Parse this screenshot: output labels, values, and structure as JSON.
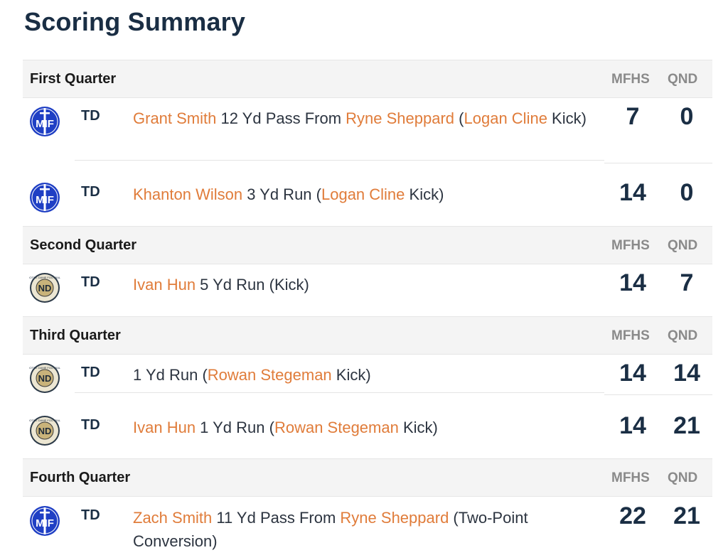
{
  "page": {
    "title": "Scoring Summary"
  },
  "columns": {
    "team1": "MFHS",
    "team2": "QND"
  },
  "quarters": [
    {
      "name": "First Quarter",
      "plays": [
        {
          "team": "mfhs",
          "type": "TD",
          "desc": [
            {
              "t": "Grant Smith",
              "hl": true
            },
            {
              "t": " 12 Yd Pass From ",
              "hl": false
            },
            {
              "t": "Ryne Sheppard",
              "hl": true
            },
            {
              "t": " (",
              "hl": false
            },
            {
              "t": "Logan Cline",
              "hl": true
            },
            {
              "t": " Kick)",
              "hl": false
            }
          ],
          "score1": "7",
          "score2": "0"
        },
        {
          "team": "mfhs",
          "type": "TD",
          "desc": [
            {
              "t": "Khanton Wilson",
              "hl": true
            },
            {
              "t": " 3 Yd Run (",
              "hl": false
            },
            {
              "t": "Logan Cline",
              "hl": true
            },
            {
              "t": " Kick)",
              "hl": false
            }
          ],
          "score1": "14",
          "score2": "0"
        }
      ]
    },
    {
      "name": "Second Quarter",
      "plays": [
        {
          "team": "qnd",
          "type": "TD",
          "desc": [
            {
              "t": "Ivan Hun",
              "hl": true
            },
            {
              "t": " 5 Yd Run (Kick)",
              "hl": false
            }
          ],
          "score1": "14",
          "score2": "7"
        }
      ]
    },
    {
      "name": "Third Quarter",
      "plays": [
        {
          "team": "qnd",
          "type": "TD",
          "desc": [
            {
              "t": "1 Yd Run (",
              "hl": false
            },
            {
              "t": "Rowan Stegeman",
              "hl": true
            },
            {
              "t": " Kick)",
              "hl": false
            }
          ],
          "score1": "14",
          "score2": "14"
        },
        {
          "team": "qnd",
          "type": "TD",
          "desc": [
            {
              "t": "Ivan Hun",
              "hl": true
            },
            {
              "t": " 1 Yd Run (",
              "hl": false
            },
            {
              "t": "Rowan Stegeman",
              "hl": true
            },
            {
              "t": " Kick)",
              "hl": false
            }
          ],
          "score1": "14",
          "score2": "21"
        }
      ]
    },
    {
      "name": "Fourth Quarter",
      "plays": [
        {
          "team": "mfhs",
          "type": "TD",
          "desc": [
            {
              "t": "Zach Smith",
              "hl": true
            },
            {
              "t": " 11 Yd Pass From ",
              "hl": false
            },
            {
              "t": "Ryne Sheppard",
              "hl": true
            },
            {
              "t": " (Two-Point Conversion)",
              "hl": false
            }
          ],
          "score1": "22",
          "score2": "21"
        }
      ]
    }
  ],
  "logos": {
    "mfhs": {
      "icon": "mfhs-logo-icon",
      "letters": "MIF",
      "color": "#1f3fc4"
    },
    "qnd": {
      "icon": "notre-dame-football-logo-icon",
      "letters": "ND",
      "ring_text": "NOTRE DAME FOOTBALL",
      "color": "#c9b37a"
    }
  }
}
